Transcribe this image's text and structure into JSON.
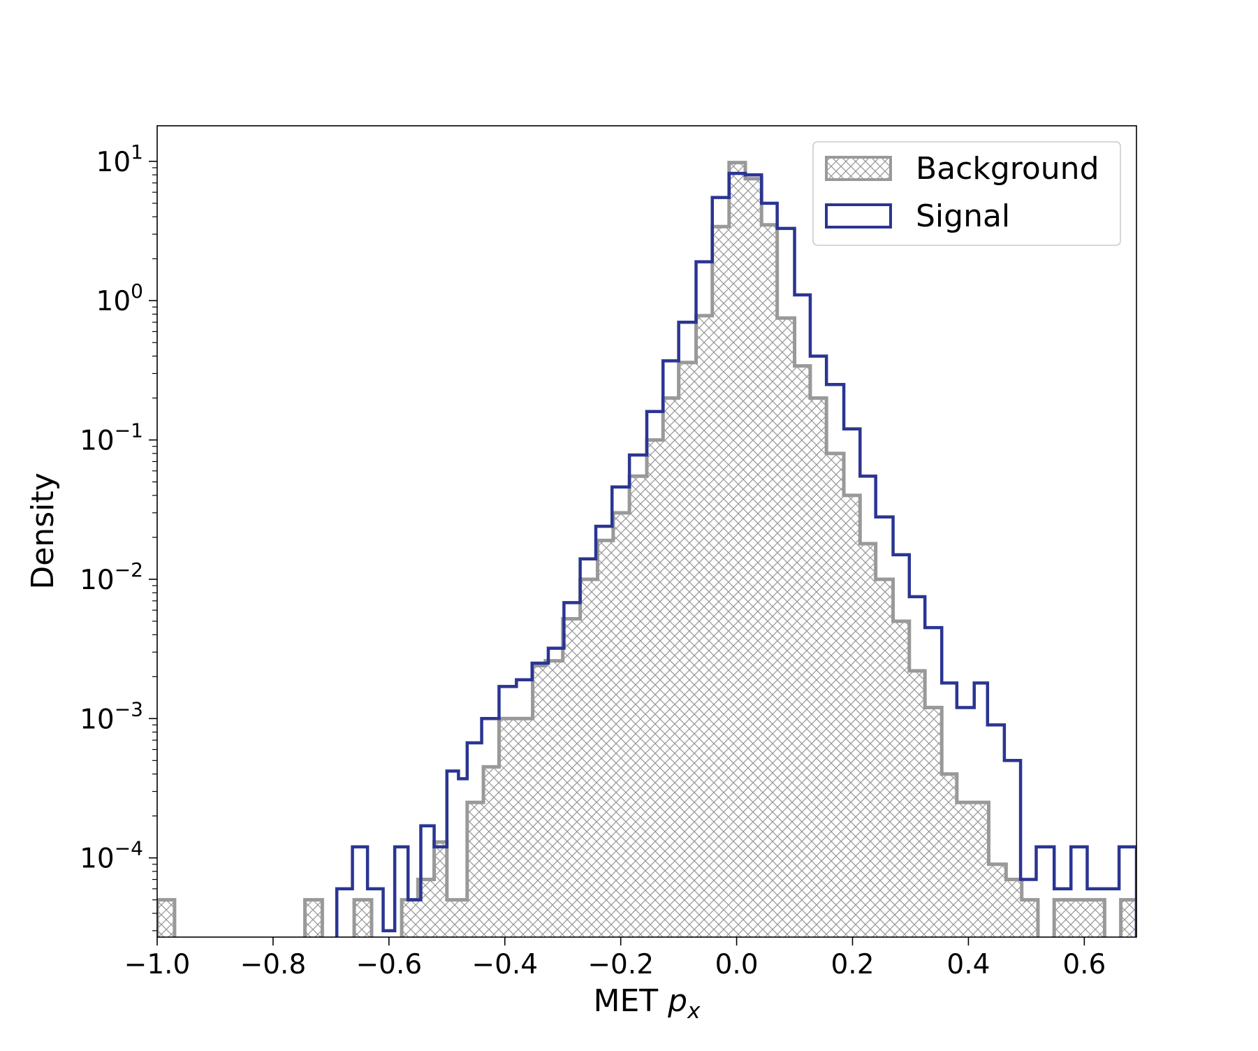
{
  "chart_data": {
    "type": "histogram",
    "xlabel": "MET",
    "xlabel_var": "p",
    "xlabel_sub": "x",
    "ylabel": "Density",
    "yscale": "log",
    "xlim": [
      -1.0,
      0.69
    ],
    "ylim": [
      2.7e-05,
      18
    ],
    "grid": false,
    "legend_position": "top-right",
    "x_ticks": [
      {
        "value": -1.0,
        "label": "−1.0"
      },
      {
        "value": -0.8,
        "label": "−0.8"
      },
      {
        "value": -0.6,
        "label": "−0.6"
      },
      {
        "value": -0.4,
        "label": "−0.4"
      },
      {
        "value": -0.2,
        "label": "−0.2"
      },
      {
        "value": 0.0,
        "label": "0.0"
      },
      {
        "value": 0.2,
        "label": "0.2"
      },
      {
        "value": 0.4,
        "label": "0.4"
      },
      {
        "value": 0.6,
        "label": "0.6"
      }
    ],
    "y_ticks": [
      {
        "value": 10,
        "base": "10",
        "exp": "1"
      },
      {
        "value": 1,
        "base": "10",
        "exp": "0"
      },
      {
        "value": 0.1,
        "base": "10",
        "exp": "−1"
      },
      {
        "value": 0.01,
        "base": "10",
        "exp": "−2"
      },
      {
        "value": 0.001,
        "base": "10",
        "exp": "−3"
      },
      {
        "value": 0.0001,
        "base": "10",
        "exp": "−4"
      }
    ],
    "series": [
      {
        "name": "Background",
        "style": "hatched",
        "color": "#999999",
        "bins": [
          [
            -1.0,
            -0.97,
            5e-05
          ],
          [
            -0.745,
            -0.715,
            5e-05
          ],
          [
            -0.66,
            -0.63,
            5e-05
          ],
          [
            -0.578,
            -0.55,
            5e-05
          ],
          [
            -0.55,
            -0.522,
            7e-05
          ],
          [
            -0.522,
            -0.5,
            0.00013
          ],
          [
            -0.5,
            -0.465,
            5e-05
          ],
          [
            -0.465,
            -0.437,
            0.00025
          ],
          [
            -0.437,
            -0.41,
            0.00045
          ],
          [
            -0.41,
            -0.352,
            0.001
          ],
          [
            -0.352,
            -0.33,
            0.0024
          ],
          [
            -0.33,
            -0.3,
            0.0026
          ],
          [
            -0.3,
            -0.27,
            0.0052
          ],
          [
            -0.27,
            -0.24,
            0.01
          ],
          [
            -0.24,
            -0.213,
            0.019
          ],
          [
            -0.213,
            -0.185,
            0.03
          ],
          [
            -0.185,
            -0.155,
            0.055
          ],
          [
            -0.155,
            -0.127,
            0.1
          ],
          [
            -0.127,
            -0.1,
            0.2
          ],
          [
            -0.1,
            -0.07,
            0.36
          ],
          [
            -0.07,
            -0.042,
            0.78
          ],
          [
            -0.042,
            -0.013,
            3.4
          ],
          [
            -0.013,
            0.015,
            9.8
          ],
          [
            0.015,
            0.043,
            7.5
          ],
          [
            0.043,
            0.07,
            3.5
          ],
          [
            0.07,
            0.1,
            0.75
          ],
          [
            0.1,
            0.127,
            0.34
          ],
          [
            0.127,
            0.155,
            0.2
          ],
          [
            0.155,
            0.185,
            0.08
          ],
          [
            0.185,
            0.213,
            0.04
          ],
          [
            0.213,
            0.24,
            0.018
          ],
          [
            0.24,
            0.27,
            0.01
          ],
          [
            0.27,
            0.298,
            0.005
          ],
          [
            0.298,
            0.325,
            0.0022
          ],
          [
            0.325,
            0.354,
            0.0012
          ],
          [
            0.354,
            0.38,
            0.0004
          ],
          [
            0.38,
            0.435,
            0.00025
          ],
          [
            0.435,
            0.465,
            9e-05
          ],
          [
            0.465,
            0.492,
            7e-05
          ],
          [
            0.492,
            0.52,
            5e-05
          ],
          [
            0.548,
            0.635,
            5e-05
          ],
          [
            0.663,
            0.69,
            5e-05
          ]
        ]
      },
      {
        "name": "Signal",
        "style": "step",
        "color": "#2a3592",
        "bins": [
          [
            -0.69,
            -0.663,
            6e-05
          ],
          [
            -0.663,
            -0.637,
            0.00012
          ],
          [
            -0.637,
            -0.61,
            6e-05
          ],
          [
            -0.61,
            -0.59,
            3e-05
          ],
          [
            -0.59,
            -0.567,
            0.00012
          ],
          [
            -0.567,
            -0.545,
            5e-05
          ],
          [
            -0.545,
            -0.522,
            0.00017
          ],
          [
            -0.522,
            -0.5,
            0.00012
          ],
          [
            -0.5,
            -0.48,
            0.00042
          ],
          [
            -0.48,
            -0.465,
            0.00037
          ],
          [
            -0.465,
            -0.44,
            0.00067
          ],
          [
            -0.44,
            -0.41,
            0.001
          ],
          [
            -0.41,
            -0.38,
            0.0017
          ],
          [
            -0.38,
            -0.353,
            0.0019
          ],
          [
            -0.353,
            -0.325,
            0.0025
          ],
          [
            -0.325,
            -0.298,
            0.0032
          ],
          [
            -0.298,
            -0.27,
            0.0068
          ],
          [
            -0.27,
            -0.243,
            0.014
          ],
          [
            -0.243,
            -0.215,
            0.024
          ],
          [
            -0.215,
            -0.185,
            0.046
          ],
          [
            -0.185,
            -0.155,
            0.078
          ],
          [
            -0.155,
            -0.127,
            0.16
          ],
          [
            -0.127,
            -0.1,
            0.37
          ],
          [
            -0.1,
            -0.07,
            0.7
          ],
          [
            -0.07,
            -0.042,
            1.9
          ],
          [
            -0.042,
            -0.013,
            5.5
          ],
          [
            -0.013,
            0.015,
            8.2
          ],
          [
            0.015,
            0.043,
            8.0
          ],
          [
            0.043,
            0.07,
            5.0
          ],
          [
            0.07,
            0.1,
            3.3
          ],
          [
            0.1,
            0.127,
            1.1
          ],
          [
            0.127,
            0.155,
            0.4
          ],
          [
            0.155,
            0.185,
            0.25
          ],
          [
            0.185,
            0.213,
            0.12
          ],
          [
            0.213,
            0.24,
            0.055
          ],
          [
            0.24,
            0.27,
            0.028
          ],
          [
            0.27,
            0.298,
            0.015
          ],
          [
            0.298,
            0.325,
            0.0075
          ],
          [
            0.325,
            0.354,
            0.0045
          ],
          [
            0.354,
            0.38,
            0.0018
          ],
          [
            0.38,
            0.41,
            0.0012
          ],
          [
            0.41,
            0.433,
            0.0018
          ],
          [
            0.433,
            0.462,
            0.0009
          ],
          [
            0.462,
            0.49,
            0.0005
          ],
          [
            0.49,
            0.517,
            7e-05
          ],
          [
            0.517,
            0.548,
            0.00012
          ],
          [
            0.548,
            0.577,
            6e-05
          ],
          [
            0.577,
            0.605,
            0.00012
          ],
          [
            0.605,
            0.66,
            6e-05
          ],
          [
            0.66,
            0.69,
            0.00012
          ]
        ]
      }
    ]
  }
}
